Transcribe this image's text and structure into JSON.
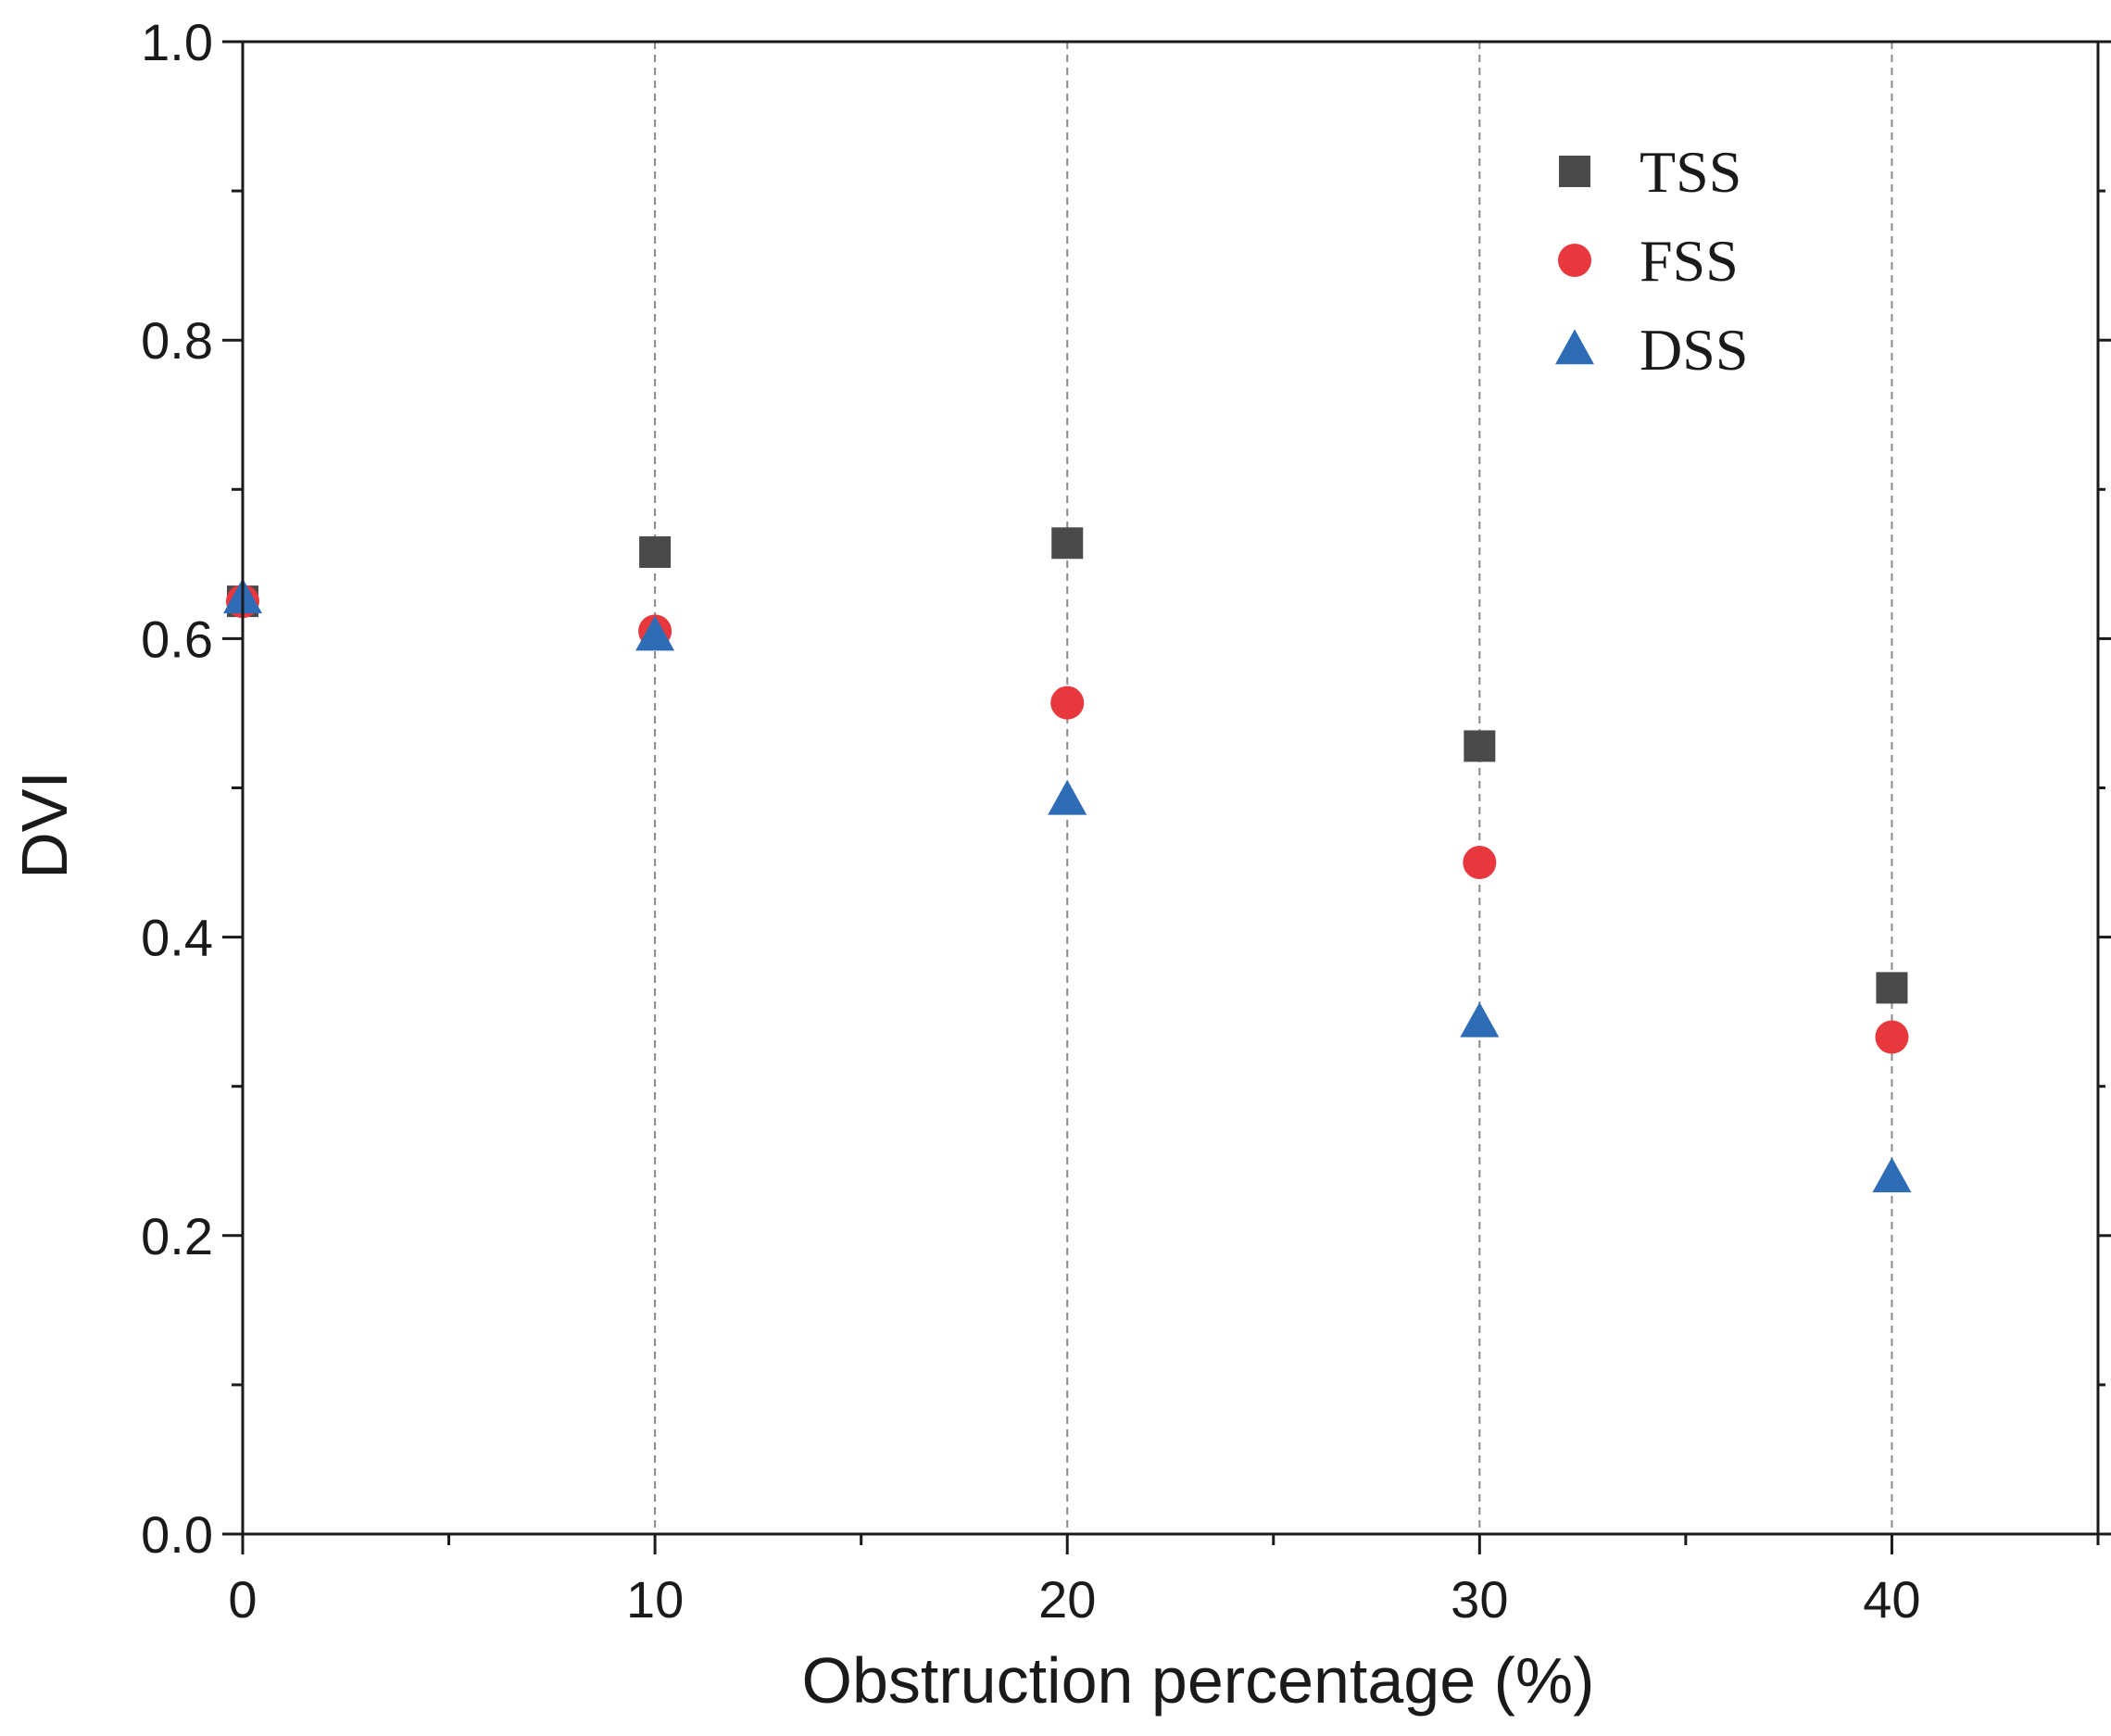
{
  "chart_data": {
    "type": "scatter",
    "title": "",
    "xlabel": "Obstruction percentage (%)",
    "ylabel": "DVI",
    "xlim": [
      0,
      45
    ],
    "ylim": [
      0.0,
      1.0
    ],
    "x_major_ticks": [
      0,
      10,
      20,
      30,
      40
    ],
    "x_tick_labels": [
      "0",
      "10",
      "20",
      "30",
      "40"
    ],
    "x_minor_ticks": [
      5,
      15,
      25,
      35,
      45
    ],
    "y_major_ticks": [
      0.0,
      0.2,
      0.4,
      0.6,
      0.8,
      1.0
    ],
    "y_tick_labels": [
      "0.0",
      "0.2",
      "0.4",
      "0.6",
      "0.8",
      "1.0"
    ],
    "y_minor_ticks": [
      0.1,
      0.3,
      0.5,
      0.7,
      0.9
    ],
    "gridlines_x": [
      10,
      20,
      30,
      40
    ],
    "grid_style": "dashed vertical",
    "legend_position": "top-right",
    "series": [
      {
        "name": "TSS",
        "marker": "square",
        "color": "#4a4a4a",
        "x": [
          0,
          10,
          20,
          30,
          40
        ],
        "y": [
          0.625,
          0.658,
          0.664,
          0.528,
          0.366
        ]
      },
      {
        "name": "FSS",
        "marker": "circle",
        "color": "#e8383d",
        "x": [
          0,
          10,
          20,
          30,
          40
        ],
        "y": [
          0.625,
          0.605,
          0.557,
          0.45,
          0.333
        ]
      },
      {
        "name": "DSS",
        "marker": "triangle",
        "color": "#2e6db5",
        "x": [
          0,
          10,
          20,
          30,
          40
        ],
        "y": [
          0.627,
          0.602,
          0.492,
          0.343,
          0.239
        ]
      }
    ]
  }
}
